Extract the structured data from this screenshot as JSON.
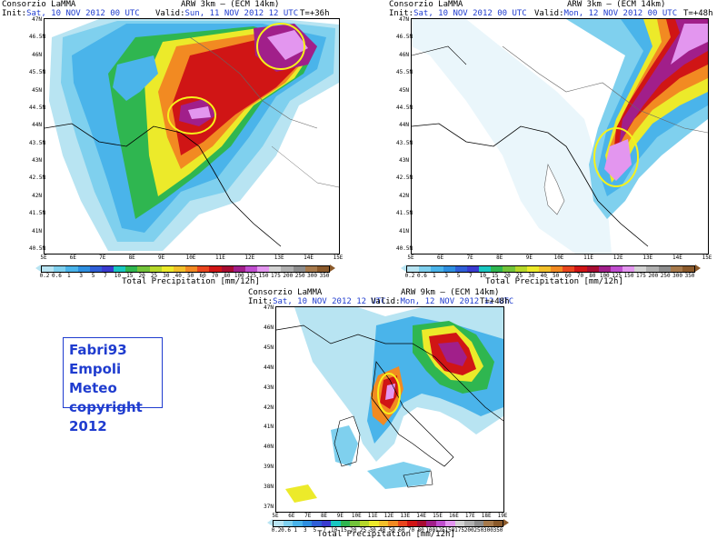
{
  "stamp": {
    "line1": "Fabri93 Empoli",
    "line2": "Meteo copyright",
    "line3": "2012"
  },
  "panels": [
    {
      "org": "Consorzio LaMMA",
      "model": "ARW 3km — (ECM 14km)",
      "init_label": "Init:",
      "init_value": "Sat, 10 NOV 2012   00 UTC",
      "valid_label": "Valid:",
      "valid_value": "Sun, 11 NOV 2012   12 UTC",
      "step": "T=+36h",
      "lat_ticks": [
        "47N",
        "46.5N",
        "46N",
        "45.5N",
        "45N",
        "44.5N",
        "44N",
        "43.5N",
        "43N",
        "42.5N",
        "42N",
        "41.5N",
        "41N",
        "40.5N"
      ],
      "lon_ticks": [
        "5E",
        "6E",
        "7E",
        "8E",
        "9E",
        "10E",
        "11E",
        "12E",
        "13E",
        "14E",
        "15E"
      ],
      "cbar_title": "Total Precipitation [mm/12h]"
    },
    {
      "org": "Consorzio LaMMA",
      "model": "ARW 3km — (ECM 14km)",
      "init_label": "Init:",
      "init_value": "Sat, 10 NOV 2012   00 UTC",
      "valid_label": "Valid:",
      "valid_value": "Mon, 12 NOV 2012   00 UTC",
      "step": "T=+48h",
      "lat_ticks": [
        "47N",
        "46.5N",
        "46N",
        "45.5N",
        "45N",
        "44.5N",
        "44N",
        "43.5N",
        "43N",
        "42.5N",
        "42N",
        "41.5N",
        "41N",
        "40.5N"
      ],
      "lon_ticks": [
        "5E",
        "6E",
        "7E",
        "8E",
        "9E",
        "10E",
        "11E",
        "12E",
        "13E",
        "14E",
        "15E"
      ],
      "cbar_title": "Total Precipitation [mm/12h]"
    },
    {
      "org": "Consorzio LaMMA",
      "model": "ARW 9km — (ECM 14km)",
      "init_label": "Init:",
      "init_value": "Sat, 10 NOV 2012   12 UTC",
      "valid_label": "Valid:",
      "valid_value": "Mon, 12 NOV 2012   12 UTC",
      "step": "T=+48h",
      "lat_ticks": [
        "47N",
        "46N",
        "45N",
        "44N",
        "43N",
        "42N",
        "41N",
        "40N",
        "39N",
        "38N",
        "37N"
      ],
      "lon_ticks": [
        "5E",
        "6E",
        "7E",
        "8E",
        "9E",
        "10E",
        "11E",
        "12E",
        "13E",
        "14E",
        "15E",
        "16E",
        "17E",
        "18E",
        "19E"
      ],
      "cbar_title": "Total Precipitation [mm/12h]"
    }
  ],
  "colorbar": {
    "labels": [
      "0.2",
      "0.6",
      "1",
      "3",
      "5",
      "7",
      "10",
      "15",
      "20",
      "25",
      "30",
      "40",
      "50",
      "60",
      "70",
      "80",
      "100",
      "125",
      "150",
      "175",
      "200",
      "250",
      "300",
      "350"
    ],
    "colors": [
      "#b8e4f2",
      "#7fd0ee",
      "#4ab4ea",
      "#2e8fe0",
      "#2f5fd8",
      "#3a3bd0",
      "#19c7c1",
      "#2fb650",
      "#73c43a",
      "#b6d82a",
      "#ecea2a",
      "#f2c02a",
      "#f28a22",
      "#e9461e",
      "#d01515",
      "#a80c32",
      "#a11f8a",
      "#c04ecf",
      "#e396ef",
      "#d3d3d3",
      "#b0b0b0",
      "#8d8d8d",
      "#a77a4c",
      "#8b5a2b"
    ]
  }
}
